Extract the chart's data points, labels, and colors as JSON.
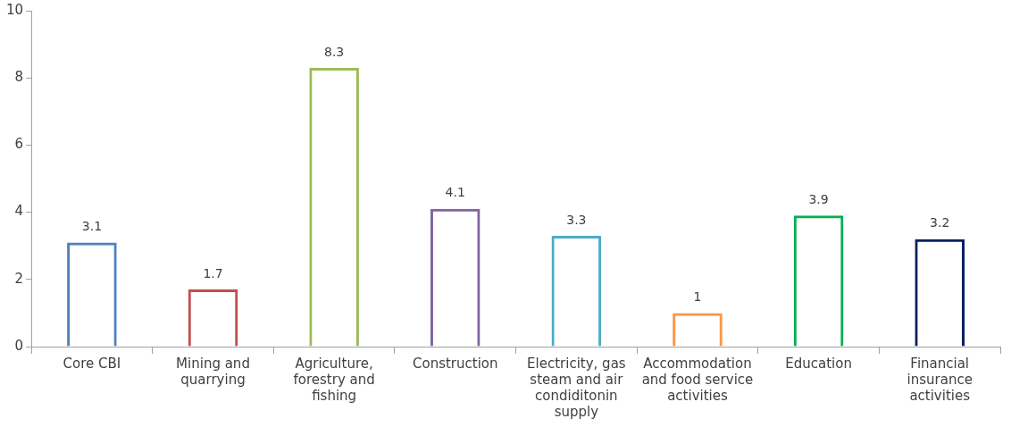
{
  "chart_data": {
    "type": "bar",
    "categories": [
      "Core CBI",
      "Mining and quarrying",
      "Agriculture, forestry and fishing",
      "Construction",
      "Electricity, gas steam and air condiditonin supply",
      "Accommodation and food service activities",
      "Education",
      "Financial insurance activities"
    ],
    "values": [
      3.1,
      1.7,
      8.3,
      4.1,
      3.3,
      1,
      3.9,
      3.2
    ],
    "colors": [
      "#4f81bd",
      "#c0504d",
      "#9bbb59",
      "#8064a2",
      "#4bacc6",
      "#f79646",
      "#00b050",
      "#002060"
    ],
    "ylim": [
      0,
      10
    ],
    "yticks": [
      0,
      2,
      4,
      6,
      8,
      10
    ],
    "grid": false,
    "legend": false,
    "data_labels": true
  }
}
